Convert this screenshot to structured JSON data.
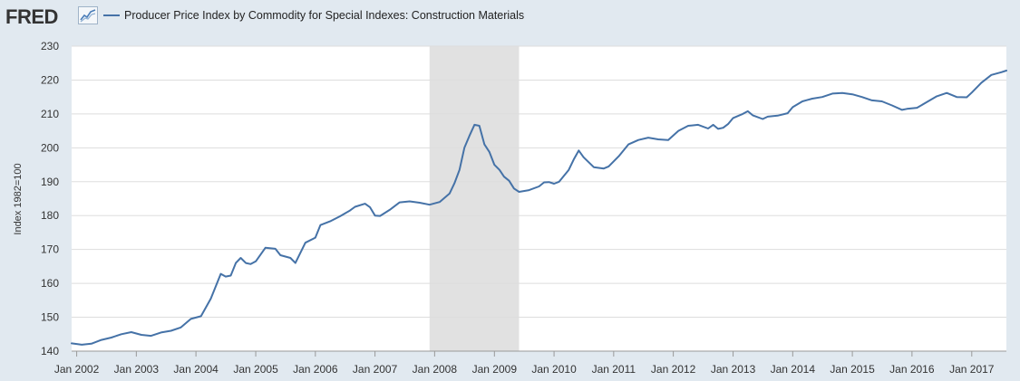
{
  "header": {
    "logo_text": "FRED",
    "logo_icon": "line-chart-icon"
  },
  "colors": {
    "background": "#e1e9f0",
    "plot_background": "#ffffff",
    "series_line": "#4572a7",
    "recession_band": "#e1e1e1",
    "grid": "#dddddd"
  },
  "chart_data": {
    "type": "line",
    "title": "",
    "xlabel": "",
    "ylabel": "Index 1982=100",
    "ylim": [
      140,
      230
    ],
    "yticks": [
      140,
      150,
      160,
      170,
      180,
      190,
      200,
      210,
      220,
      230
    ],
    "xlim": [
      "2001-12-01",
      "2017-08-01"
    ],
    "xtick_labels": [
      "Jan 2002",
      "Jan 2003",
      "Jan 2004",
      "Jan 2005",
      "Jan 2006",
      "Jan 2007",
      "Jan 2008",
      "Jan 2009",
      "Jan 2010",
      "Jan 2011",
      "Jan 2012",
      "Jan 2013",
      "Jan 2014",
      "Jan 2015",
      "Jan 2016",
      "Jan 2017"
    ],
    "grid": true,
    "legend_position": "top-left",
    "shaded_periods": [
      {
        "start": "2007-12-01",
        "end": "2009-06-01"
      }
    ],
    "series": [
      {
        "name": "Producer Price Index by Commodity for Special Indexes: Construction Materials",
        "points": [
          [
            "2001-12-01",
            142.3
          ],
          [
            "2002-02-01",
            141.9
          ],
          [
            "2002-04-01",
            142.2
          ],
          [
            "2002-06-01",
            143.3
          ],
          [
            "2002-08-01",
            144.0
          ],
          [
            "2002-10-01",
            145.0
          ],
          [
            "2002-12-01",
            145.6
          ],
          [
            "2003-02-01",
            144.8
          ],
          [
            "2003-04-01",
            144.5
          ],
          [
            "2003-06-01",
            145.5
          ],
          [
            "2003-08-01",
            146.0
          ],
          [
            "2003-10-01",
            147.0
          ],
          [
            "2003-12-01",
            149.5
          ],
          [
            "2004-02-01",
            150.3
          ],
          [
            "2004-04-01",
            155.5
          ],
          [
            "2004-06-01",
            162.8
          ],
          [
            "2004-07-01",
            162.0
          ],
          [
            "2004-08-01",
            162.3
          ],
          [
            "2004-09-01",
            166.0
          ],
          [
            "2004-10-01",
            167.5
          ],
          [
            "2004-11-01",
            166.0
          ],
          [
            "2004-12-01",
            165.7
          ],
          [
            "2005-01-01",
            166.5
          ],
          [
            "2005-03-01",
            170.5
          ],
          [
            "2005-05-01",
            170.2
          ],
          [
            "2005-06-01",
            168.3
          ],
          [
            "2005-08-01",
            167.5
          ],
          [
            "2005-09-01",
            166.0
          ],
          [
            "2005-11-01",
            172.0
          ],
          [
            "2006-01-01",
            173.5
          ],
          [
            "2006-02-01",
            177.2
          ],
          [
            "2006-04-01",
            178.3
          ],
          [
            "2006-06-01",
            179.8
          ],
          [
            "2006-08-01",
            181.5
          ],
          [
            "2006-09-01",
            182.6
          ],
          [
            "2006-11-01",
            183.5
          ],
          [
            "2006-12-01",
            182.5
          ],
          [
            "2007-01-01",
            180.0
          ],
          [
            "2007-02-01",
            179.9
          ],
          [
            "2007-04-01",
            181.7
          ],
          [
            "2007-06-01",
            183.9
          ],
          [
            "2007-08-01",
            184.2
          ],
          [
            "2007-10-01",
            183.8
          ],
          [
            "2007-12-01",
            183.2
          ],
          [
            "2008-02-01",
            184.0
          ],
          [
            "2008-04-01",
            186.5
          ],
          [
            "2008-05-01",
            189.5
          ],
          [
            "2008-06-01",
            193.5
          ],
          [
            "2008-07-01",
            200.0
          ],
          [
            "2008-08-01",
            203.5
          ],
          [
            "2008-09-01",
            206.8
          ],
          [
            "2008-10-01",
            206.5
          ],
          [
            "2008-11-01",
            201.0
          ],
          [
            "2008-12-01",
            198.8
          ],
          [
            "2009-01-01",
            195.0
          ],
          [
            "2009-02-01",
            193.5
          ],
          [
            "2009-03-01",
            191.5
          ],
          [
            "2009-04-01",
            190.3
          ],
          [
            "2009-05-01",
            188.0
          ],
          [
            "2009-06-01",
            187.0
          ],
          [
            "2009-08-01",
            187.5
          ],
          [
            "2009-10-01",
            188.6
          ],
          [
            "2009-11-01",
            189.8
          ],
          [
            "2009-12-01",
            189.9
          ],
          [
            "2010-01-01",
            189.4
          ],
          [
            "2010-02-01",
            190.0
          ],
          [
            "2010-04-01",
            193.5
          ],
          [
            "2010-05-01",
            196.5
          ],
          [
            "2010-06-01",
            199.2
          ],
          [
            "2010-07-01",
            197.2
          ],
          [
            "2010-09-01",
            194.3
          ],
          [
            "2010-11-01",
            193.9
          ],
          [
            "2010-12-01",
            194.5
          ],
          [
            "2011-02-01",
            197.5
          ],
          [
            "2011-04-01",
            201.0
          ],
          [
            "2011-06-01",
            202.3
          ],
          [
            "2011-08-01",
            203.0
          ],
          [
            "2011-10-01",
            202.5
          ],
          [
            "2011-12-01",
            202.3
          ],
          [
            "2012-02-01",
            205.0
          ],
          [
            "2012-04-01",
            206.5
          ],
          [
            "2012-06-01",
            206.8
          ],
          [
            "2012-08-01",
            205.7
          ],
          [
            "2012-09-01",
            206.8
          ],
          [
            "2012-10-01",
            205.6
          ],
          [
            "2012-11-01",
            205.9
          ],
          [
            "2012-12-01",
            207.0
          ],
          [
            "2013-01-01",
            208.8
          ],
          [
            "2013-03-01",
            210.0
          ],
          [
            "2013-04-01",
            210.8
          ],
          [
            "2013-05-01",
            209.6
          ],
          [
            "2013-07-01",
            208.5
          ],
          [
            "2013-08-01",
            209.2
          ],
          [
            "2013-10-01",
            209.5
          ],
          [
            "2013-12-01",
            210.2
          ],
          [
            "2014-01-01",
            212.0
          ],
          [
            "2014-03-01",
            213.7
          ],
          [
            "2014-05-01",
            214.5
          ],
          [
            "2014-07-01",
            215.0
          ],
          [
            "2014-09-01",
            216.0
          ],
          [
            "2014-11-01",
            216.2
          ],
          [
            "2015-01-01",
            215.8
          ],
          [
            "2015-03-01",
            215.0
          ],
          [
            "2015-05-01",
            214.0
          ],
          [
            "2015-07-01",
            213.7
          ],
          [
            "2015-09-01",
            212.5
          ],
          [
            "2015-11-01",
            211.2
          ],
          [
            "2015-12-01",
            211.5
          ],
          [
            "2016-02-01",
            211.8
          ],
          [
            "2016-04-01",
            213.5
          ],
          [
            "2016-06-01",
            215.2
          ],
          [
            "2016-08-01",
            216.2
          ],
          [
            "2016-10-01",
            215.0
          ],
          [
            "2016-12-01",
            214.9
          ],
          [
            "2017-01-01",
            216.3
          ],
          [
            "2017-03-01",
            219.2
          ],
          [
            "2017-05-01",
            221.5
          ],
          [
            "2017-07-01",
            222.3
          ],
          [
            "2017-08-01",
            222.8
          ]
        ]
      }
    ]
  }
}
